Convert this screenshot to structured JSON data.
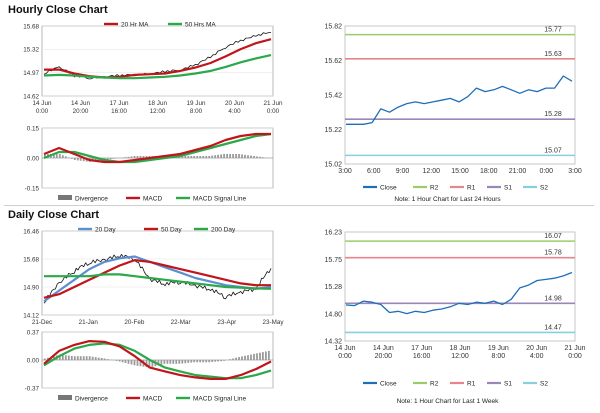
{
  "hourly": {
    "title": "Hourly Close Chart",
    "left": {
      "price": {
        "legend": [
          "20 Hr MA",
          "50 Hrs MA"
        ],
        "yticks": [
          "15.68",
          "15.32",
          "14.97",
          "14.62"
        ],
        "ylim": [
          14.62,
          15.68
        ],
        "xticks_line1": [
          "14 Jun",
          "14 Jun",
          "17 Jun",
          "18 Jun",
          "19 Jun",
          "20 Jun",
          "21 Jun"
        ],
        "xticks_line2": [
          "0:00",
          "20:00",
          "16:00",
          "12:00",
          "8:00",
          "4:00",
          "0:00"
        ]
      },
      "macd": {
        "yticks": [
          "0.15",
          "0.00",
          "-0.15"
        ],
        "ylim": [
          -0.15,
          0.15
        ],
        "legend": [
          "Divergence",
          "MACD",
          "MACD Signal Line"
        ]
      }
    },
    "right": {
      "yticks": [
        "15.82",
        "15.62",
        "15.42",
        "15.22",
        "15.02"
      ],
      "ylim": [
        15.02,
        15.82
      ],
      "xticks": [
        "3:00",
        "6:00",
        "9:00",
        "12:00",
        "15:00",
        "18:00",
        "21:00",
        "0:00",
        "3:00"
      ],
      "levels": [
        {
          "name": "R2",
          "value": 15.77,
          "label": "15.77",
          "color": "#9acd68"
        },
        {
          "name": "R1",
          "value": 15.63,
          "label": "15.63",
          "color": "#e8858a"
        },
        {
          "name": "S1",
          "value": 15.28,
          "label": "15.28",
          "color": "#9a86b8"
        },
        {
          "name": "S2",
          "value": 15.07,
          "label": "15.07",
          "color": "#86cfe0"
        }
      ],
      "legend": [
        "Close",
        "R2",
        "R1",
        "S1",
        "S2"
      ],
      "note": "Note: 1 Hour Chart for Last 24 Hours"
    }
  },
  "daily": {
    "title": "Daily Close Chart",
    "left": {
      "price": {
        "legend": [
          "20 Day",
          "50 Day",
          "200 Day"
        ],
        "yticks": [
          "16.46",
          "15.68",
          "14.90",
          "14.12"
        ],
        "ylim": [
          14.12,
          16.46
        ],
        "xticks": [
          "21-Dec",
          "21-Jan",
          "20-Feb",
          "22-Mar",
          "23-Apr",
          "23-May"
        ]
      },
      "macd": {
        "yticks": [
          "0.37",
          "0.00",
          "-0.37"
        ],
        "ylim": [
          -0.37,
          0.37
        ],
        "legend": [
          "Divergence",
          "MACD",
          "MACD Signal Line"
        ]
      }
    },
    "right": {
      "yticks": [
        "16.23",
        "15.75",
        "15.28",
        "14.80",
        "14.32"
      ],
      "ylim": [
        14.32,
        16.23
      ],
      "xticks_line1": [
        "14 Jun",
        "14 Jun",
        "17 Jun",
        "18 Jun",
        "19 Jun",
        "20 Jun",
        "21 Jun"
      ],
      "xticks_line2": [
        "0:00",
        "20:00",
        "16:00",
        "12:00",
        "8:00",
        "4:00",
        "0:00"
      ],
      "levels": [
        {
          "name": "R2",
          "value": 16.07,
          "label": "16.07",
          "color": "#9acd68"
        },
        {
          "name": "R1",
          "value": 15.78,
          "label": "15.78",
          "color": "#e8858a"
        },
        {
          "name": "S1",
          "value": 14.98,
          "label": "14.98",
          "color": "#9a86b8"
        },
        {
          "name": "S2",
          "value": 14.47,
          "label": "14.47",
          "color": "#86cfe0"
        }
      ],
      "legend": [
        "Close",
        "R2",
        "R1",
        "S1",
        "S2"
      ],
      "note": "Note: 1 Hour Chart for Last 1 Week"
    }
  },
  "colors": {
    "close": "#1f6fb8",
    "ma_red": "#c0151b",
    "ma_green": "#2aa84a",
    "ma_blue": "#5b8fd0",
    "divergence": "#9a9a9a"
  },
  "chart_data": [
    {
      "type": "line",
      "panel": "hourly-price",
      "ylim": [
        14.62,
        15.68
      ],
      "series": [
        {
          "name": "20 Hr MA",
          "values": [
            15.02,
            15.02,
            14.96,
            14.92,
            14.9,
            14.91,
            14.94,
            14.95,
            14.96,
            15.0,
            15.05,
            15.12,
            15.22,
            15.33,
            15.42,
            15.48
          ]
        },
        {
          "name": "50 Hrs MA",
          "values": [
            14.93,
            14.94,
            14.93,
            14.91,
            14.9,
            14.89,
            14.89,
            14.9,
            14.91,
            14.93,
            14.96,
            15.0,
            15.06,
            15.13,
            15.19,
            15.24
          ]
        }
      ],
      "close": [
        14.95,
        15.05,
        14.92,
        14.88,
        14.9,
        14.92,
        14.93,
        14.94,
        14.98,
        15.0,
        15.08,
        15.2,
        15.35,
        15.45,
        15.52,
        15.58
      ]
    },
    {
      "type": "line",
      "panel": "hourly-macd",
      "ylim": [
        -0.15,
        0.15
      ],
      "series": [
        {
          "name": "MACD",
          "values": [
            0.02,
            0.05,
            0.02,
            -0.01,
            -0.02,
            -0.02,
            -0.01,
            0.0,
            0.01,
            0.02,
            0.04,
            0.06,
            0.09,
            0.11,
            0.12,
            0.12
          ]
        },
        {
          "name": "MACD Signal Line",
          "values": [
            0.0,
            0.03,
            0.03,
            0.01,
            -0.01,
            -0.02,
            -0.02,
            -0.01,
            0.0,
            0.01,
            0.03,
            0.05,
            0.07,
            0.09,
            0.11,
            0.12
          ]
        }
      ],
      "divergence": [
        0.02,
        0.02,
        -0.01,
        -0.02,
        -0.01,
        0.0,
        0.01,
        0.01,
        0.01,
        0.01,
        0.01,
        0.01,
        0.02,
        0.02,
        0.01,
        0.0
      ]
    },
    {
      "type": "line",
      "panel": "hourly-pivot",
      "ylim": [
        15.02,
        15.82
      ],
      "series": [
        {
          "name": "Close",
          "values": [
            15.25,
            15.25,
            15.25,
            15.26,
            15.34,
            15.32,
            15.35,
            15.37,
            15.38,
            15.37,
            15.38,
            15.39,
            15.4,
            15.38,
            15.41,
            15.46,
            15.44,
            15.45,
            15.47,
            15.45,
            15.43,
            15.45,
            15.44,
            15.46,
            15.46,
            15.53,
            15.5
          ]
        }
      ]
    },
    {
      "type": "line",
      "panel": "daily-price",
      "ylim": [
        14.12,
        16.46
      ],
      "series": [
        {
          "name": "20 Day",
          "values": [
            14.5,
            14.8,
            15.1,
            15.4,
            15.6,
            15.7,
            15.75,
            15.6,
            15.45,
            15.3,
            15.15,
            15.05,
            14.95,
            14.9,
            14.85,
            14.9
          ]
        },
        {
          "name": "50 Day",
          "values": [
            14.6,
            14.7,
            14.9,
            15.1,
            15.3,
            15.5,
            15.65,
            15.6,
            15.5,
            15.4,
            15.3,
            15.2,
            15.1,
            15.0,
            14.95,
            14.95
          ]
        },
        {
          "name": "200 Day",
          "values": [
            15.2,
            15.2,
            15.2,
            15.2,
            15.25,
            15.25,
            15.2,
            15.15,
            15.1,
            15.05,
            15.0,
            14.95,
            14.9,
            14.88,
            14.86,
            14.85
          ]
        }
      ],
      "close": [
        14.45,
        14.98,
        15.32,
        15.55,
        15.62,
        15.75,
        15.65,
        15.08,
        14.95,
        15.02,
        14.9,
        14.8,
        14.6,
        14.72,
        14.82,
        15.42
      ]
    },
    {
      "type": "line",
      "panel": "daily-macd",
      "ylim": [
        -0.37,
        0.37
      ],
      "series": [
        {
          "name": "MACD",
          "values": [
            -0.05,
            0.12,
            0.2,
            0.25,
            0.24,
            0.18,
            0.05,
            -0.1,
            -0.15,
            -0.2,
            -0.23,
            -0.25,
            -0.25,
            -0.2,
            -0.12,
            -0.02
          ]
        },
        {
          "name": "MACD Signal Line",
          "values": [
            -0.07,
            0.05,
            0.15,
            0.2,
            0.22,
            0.2,
            0.12,
            0.0,
            -0.1,
            -0.15,
            -0.2,
            -0.22,
            -0.24,
            -0.24,
            -0.2,
            -0.14
          ]
        }
      ],
      "divergence": [
        0.02,
        0.07,
        0.05,
        0.05,
        0.02,
        -0.02,
        -0.07,
        -0.1,
        -0.05,
        -0.05,
        -0.03,
        -0.03,
        -0.01,
        0.04,
        0.08,
        0.12
      ]
    },
    {
      "type": "line",
      "panel": "daily-pivot",
      "ylim": [
        14.32,
        16.23
      ],
      "series": [
        {
          "name": "Close",
          "values": [
            14.95,
            14.94,
            15.02,
            15.0,
            14.96,
            14.82,
            14.84,
            14.8,
            14.84,
            14.82,
            14.86,
            14.88,
            14.92,
            14.98,
            14.96,
            15.0,
            14.98,
            15.02,
            14.96,
            15.05,
            15.25,
            15.3,
            15.38,
            15.4,
            15.42,
            15.46,
            15.52
          ]
        }
      ]
    }
  ]
}
